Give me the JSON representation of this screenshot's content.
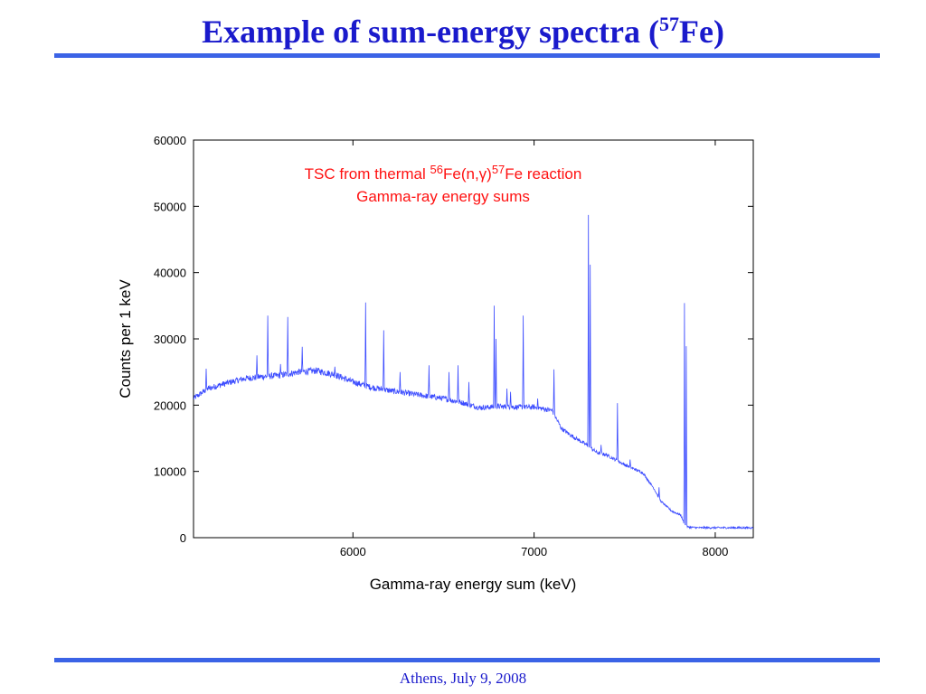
{
  "slide": {
    "title_main": "Example of sum-energy spectra (",
    "title_sup": "57",
    "title_end": "Fe)",
    "footer": "Athens, July 9, 2008"
  },
  "colors": {
    "title": "#1a1acc",
    "rule": "#3b63e6",
    "series": "#3b4bff",
    "annotation": "#ff1111"
  },
  "chart_data": {
    "type": "line",
    "xlabel": "Gamma-ray energy sum (keV)",
    "ylabel": "Counts per 1 keV",
    "xlim": [
      5120,
      8210
    ],
    "ylim": [
      0,
      60000
    ],
    "x_ticks": [
      6000,
      7000,
      8000
    ],
    "y_ticks": [
      0,
      10000,
      20000,
      30000,
      40000,
      50000,
      60000
    ],
    "x_tick_labels": [
      "6000",
      "7000",
      "8000"
    ],
    "y_tick_labels": [
      "0",
      "10000",
      "20000",
      "30000",
      "40000",
      "50000",
      "60000"
    ],
    "grid": false,
    "annotation": {
      "line1_pre": "TSC from thermal ",
      "line1_sup1": "56",
      "line1_mid": "Fe(n,γ)",
      "line1_sup2": "57",
      "line1_post": "Fe reaction",
      "line2": "Gamma-ray energy sums"
    },
    "series": [
      {
        "baseline": [
          [
            5120,
            21000
          ],
          [
            5200,
            22500
          ],
          [
            5300,
            23300
          ],
          [
            5400,
            24000
          ],
          [
            5500,
            24300
          ],
          [
            5600,
            24500
          ],
          [
            5700,
            25000
          ],
          [
            5800,
            25200
          ],
          [
            5900,
            24600
          ],
          [
            6000,
            23500
          ],
          [
            6100,
            22700
          ],
          [
            6200,
            22200
          ],
          [
            6300,
            21800
          ],
          [
            6400,
            21400
          ],
          [
            6500,
            21000
          ],
          [
            6600,
            20400
          ],
          [
            6700,
            19600
          ],
          [
            6800,
            19800
          ],
          [
            6900,
            19700
          ],
          [
            7000,
            19700
          ],
          [
            7100,
            19200
          ],
          [
            7150,
            16500
          ],
          [
            7200,
            15500
          ],
          [
            7290,
            14000
          ],
          [
            7350,
            12800
          ],
          [
            7400,
            12500
          ],
          [
            7500,
            11000
          ],
          [
            7600,
            9800
          ],
          [
            7660,
            7500
          ],
          [
            7700,
            5500
          ],
          [
            7760,
            4000
          ],
          [
            7810,
            3400
          ],
          [
            7830,
            2000
          ],
          [
            7850,
            1600
          ],
          [
            7900,
            1500
          ],
          [
            8000,
            1500
          ],
          [
            8100,
            1500
          ],
          [
            8210,
            1500
          ]
        ],
        "peaks": [
          [
            5190,
            25500
          ],
          [
            5470,
            27500
          ],
          [
            5530,
            33500
          ],
          [
            5600,
            26200
          ],
          [
            5640,
            33300
          ],
          [
            5720,
            28800
          ],
          [
            5900,
            25800
          ],
          [
            6070,
            35500
          ],
          [
            6170,
            31300
          ],
          [
            6260,
            25000
          ],
          [
            6420,
            26000
          ],
          [
            6530,
            25000
          ],
          [
            6580,
            26000
          ],
          [
            6640,
            23500
          ],
          [
            6780,
            35000
          ],
          [
            6790,
            30000
          ],
          [
            6850,
            22500
          ],
          [
            6870,
            22000
          ],
          [
            6940,
            33500
          ],
          [
            7020,
            21000
          ],
          [
            7110,
            25400
          ],
          [
            7300,
            48700
          ],
          [
            7310,
            41200
          ],
          [
            7370,
            14000
          ],
          [
            7460,
            20300
          ],
          [
            7530,
            11800
          ],
          [
            7690,
            7600
          ],
          [
            7830,
            35400
          ],
          [
            7840,
            28900
          ]
        ]
      }
    ]
  }
}
